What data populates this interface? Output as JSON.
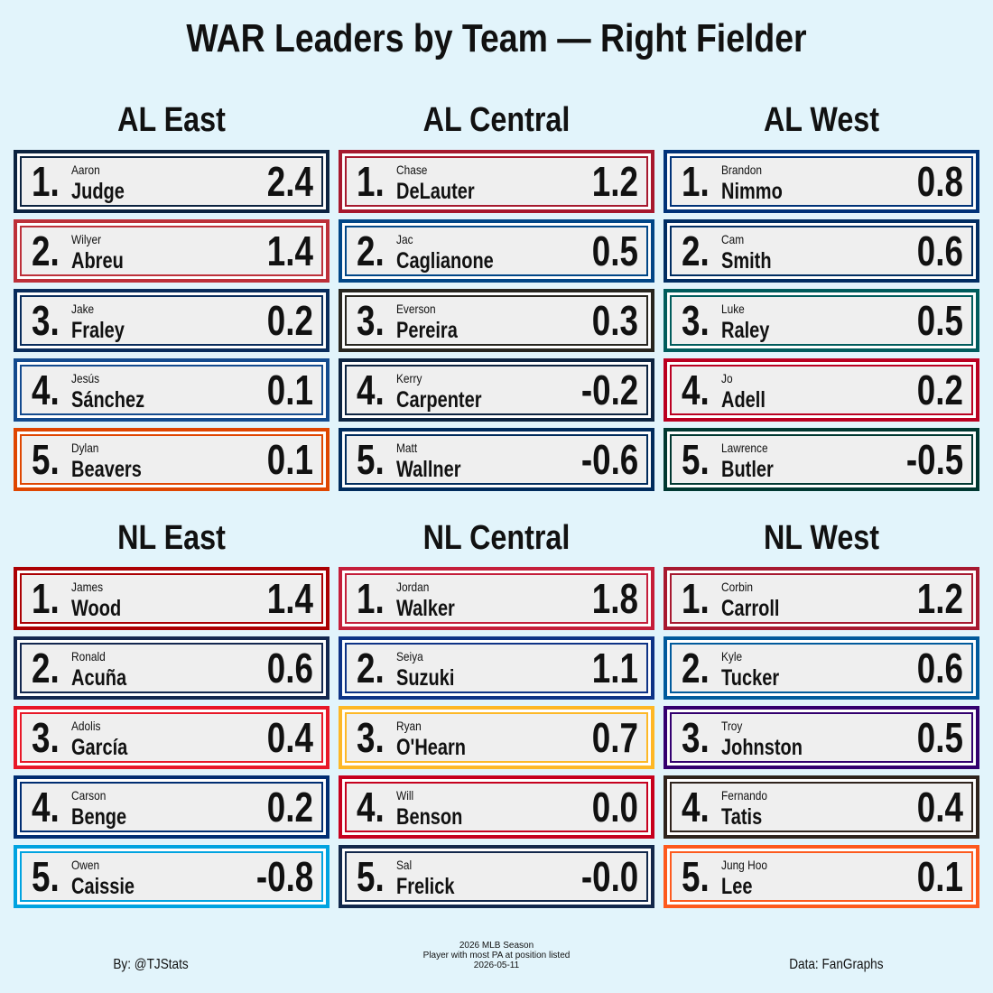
{
  "header": {
    "title": "WAR Leaders by Team — Right Fielder"
  },
  "divisions": [
    {
      "name": "AL East",
      "players": [
        {
          "rank": "1.",
          "first": "Aaron",
          "last": "Judge",
          "war": "2.4",
          "color": "#0c2340"
        },
        {
          "rank": "2.",
          "first": "Wilyer",
          "last": "Abreu",
          "war": "1.4",
          "color": "#bd3039"
        },
        {
          "rank": "3.",
          "first": "Jake",
          "last": "Fraley",
          "war": "0.2",
          "color": "#092c5c"
        },
        {
          "rank": "4.",
          "first": "Jesús",
          "last": "Sánchez",
          "war": "0.1",
          "color": "#134a8e"
        },
        {
          "rank": "5.",
          "first": "Dylan",
          "last": "Beavers",
          "war": "0.1",
          "color": "#df4601"
        }
      ]
    },
    {
      "name": "AL Central",
      "players": [
        {
          "rank": "1.",
          "first": "Chase",
          "last": "DeLauter",
          "war": "1.2",
          "color": "#a6192e"
        },
        {
          "rank": "2.",
          "first": "Jac",
          "last": "Caglianone",
          "war": "0.5",
          "color": "#004687"
        },
        {
          "rank": "3.",
          "first": "Everson",
          "last": "Pereira",
          "war": "0.3",
          "color": "#27251f"
        },
        {
          "rank": "4.",
          "first": "Kerry",
          "last": "Carpenter",
          "war": "-0.2",
          "color": "#0c2340"
        },
        {
          "rank": "5.",
          "first": "Matt",
          "last": "Wallner",
          "war": "-0.6",
          "color": "#002b5c"
        }
      ]
    },
    {
      "name": "AL West",
      "players": [
        {
          "rank": "1.",
          "first": "Brandon",
          "last": "Nimmo",
          "war": "0.8",
          "color": "#003278"
        },
        {
          "rank": "2.",
          "first": "Cam",
          "last": "Smith",
          "war": "0.6",
          "color": "#002d62"
        },
        {
          "rank": "3.",
          "first": "Luke",
          "last": "Raley",
          "war": "0.5",
          "color": "#005c5c"
        },
        {
          "rank": "4.",
          "first": "Jo",
          "last": "Adell",
          "war": "0.2",
          "color": "#ba0021"
        },
        {
          "rank": "5.",
          "first": "Lawrence",
          "last": "Butler",
          "war": "-0.5",
          "color": "#003831"
        }
      ]
    },
    {
      "name": "NL East",
      "players": [
        {
          "rank": "1.",
          "first": "James",
          "last": "Wood",
          "war": "1.4",
          "color": "#ab0003"
        },
        {
          "rank": "2.",
          "first": "Ronald",
          "last": "Acuña",
          "war": "0.6",
          "color": "#13274f"
        },
        {
          "rank": "3.",
          "first": "Adolis",
          "last": "García",
          "war": "0.4",
          "color": "#e81828"
        },
        {
          "rank": "4.",
          "first": "Carson",
          "last": "Benge",
          "war": "0.2",
          "color": "#002d72"
        },
        {
          "rank": "5.",
          "first": "Owen",
          "last": "Caissie",
          "war": "-0.8",
          "color": "#00a3e0"
        }
      ]
    },
    {
      "name": "NL Central",
      "players": [
        {
          "rank": "1.",
          "first": "Jordan",
          "last": "Walker",
          "war": "1.8",
          "color": "#c41e3a"
        },
        {
          "rank": "2.",
          "first": "Seiya",
          "last": "Suzuki",
          "war": "1.1",
          "color": "#0e3386"
        },
        {
          "rank": "3.",
          "first": "Ryan",
          "last": "O'Hearn",
          "war": "0.7",
          "color": "#fdb827"
        },
        {
          "rank": "4.",
          "first": "Will",
          "last": "Benson",
          "war": "0.0",
          "color": "#c6011f"
        },
        {
          "rank": "5.",
          "first": "Sal",
          "last": "Frelick",
          "war": "-0.0",
          "color": "#12284b"
        }
      ]
    },
    {
      "name": "NL West",
      "players": [
        {
          "rank": "1.",
          "first": "Corbin",
          "last": "Carroll",
          "war": "1.2",
          "color": "#a71930"
        },
        {
          "rank": "2.",
          "first": "Kyle",
          "last": "Tucker",
          "war": "0.6",
          "color": "#005a9c"
        },
        {
          "rank": "3.",
          "first": "Troy",
          "last": "Johnston",
          "war": "0.5",
          "color": "#33006f"
        },
        {
          "rank": "4.",
          "first": "Fernando",
          "last": "Tatis",
          "war": "0.4",
          "color": "#2f241d"
        },
        {
          "rank": "5.",
          "first": "Jung Hoo",
          "last": "Lee",
          "war": "0.1",
          "color": "#fd5a1e"
        }
      ]
    }
  ],
  "footer": {
    "credit": "By: @TJStats",
    "notes": [
      "2026 MLB Season",
      "Player with most PA at position listed",
      "2026-05-11"
    ],
    "source": "Data: FanGraphs"
  }
}
